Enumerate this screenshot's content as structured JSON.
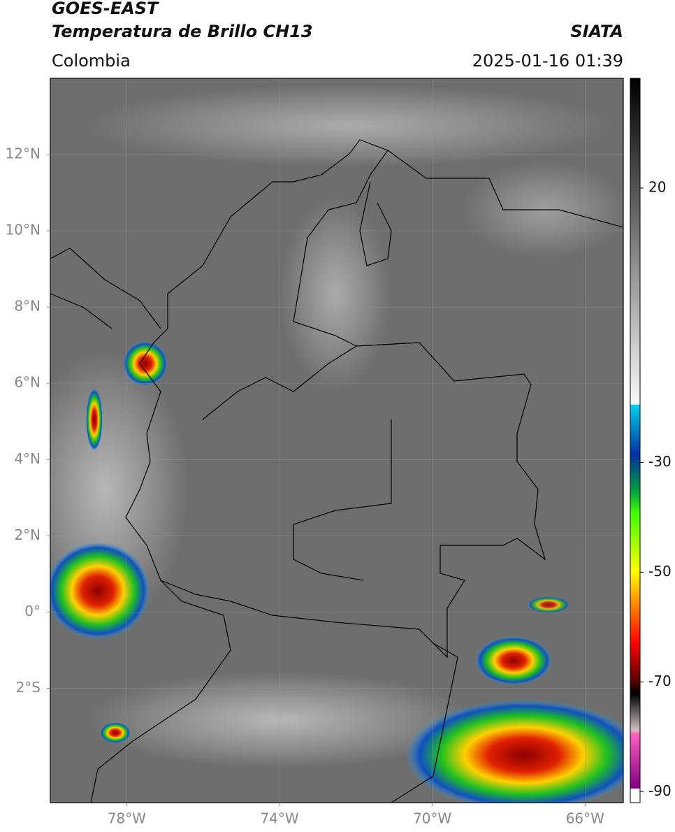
{
  "header": {
    "title": "GOES-EAST",
    "subtitle": "Temperatura de Brillo CH13",
    "source": "SIATA",
    "region": "Colombia",
    "datetime": "2025-01-16 01:39"
  },
  "map": {
    "xlim": [
      -80,
      -65
    ],
    "ylim": [
      -5,
      14
    ],
    "grid": true,
    "xticks": [
      {
        "value": -78,
        "label": "78°W"
      },
      {
        "value": -74,
        "label": "74°W"
      },
      {
        "value": -70,
        "label": "70°W"
      },
      {
        "value": -66,
        "label": "66°W"
      }
    ],
    "yticks": [
      {
        "value": 12,
        "label": "12°N"
      },
      {
        "value": 10,
        "label": "10°N"
      },
      {
        "value": 8,
        "label": "8°N"
      },
      {
        "value": 6,
        "label": "6°N"
      },
      {
        "value": 4,
        "label": "4°N"
      },
      {
        "value": 2,
        "label": "2°N"
      },
      {
        "value": 0,
        "label": "0°"
      },
      {
        "value": -2,
        "label": "2°S"
      }
    ]
  },
  "colorbar": {
    "lim": [
      -92,
      40
    ],
    "ticks": [
      20,
      -30,
      -50,
      -70,
      -90
    ]
  }
}
